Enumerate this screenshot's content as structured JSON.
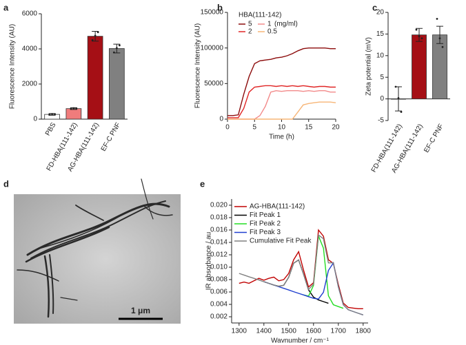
{
  "chart_data": [
    {
      "type": "bar",
      "panel_label": "a",
      "ylabel": "Fluorescence Intensity (AU)",
      "categories": [
        "PBS",
        "FD-HBA(111-142)",
        "AG-HBA(111-142)",
        "EF-C PNF"
      ],
      "values": [
        270,
        600,
        4720,
        4020
      ],
      "errors": [
        50,
        50,
        280,
        250
      ],
      "points": [
        [
          250,
          290,
          280
        ],
        [
          580,
          620,
          600
        ],
        [
          4500,
          4750,
          4950
        ],
        [
          3800,
          4050,
          4200
        ]
      ],
      "colors": [
        "#ffffff",
        "#f07c7c",
        "#a50f15",
        "#808080"
      ],
      "ylim": [
        0,
        6000
      ],
      "yticks": [
        0,
        2000,
        4000,
        6000
      ]
    },
    {
      "type": "line",
      "panel_label": "b",
      "ylabel": "Fluorescence Intensity (AU)",
      "xlabel": "Time (h)",
      "legend_title": "HBA(111-142)",
      "legend_note": "(mg/ml)",
      "x": [
        0,
        1,
        2,
        3,
        4,
        5,
        6,
        7,
        8,
        9,
        10,
        11,
        12,
        13,
        14,
        15,
        16,
        17,
        18,
        19,
        20
      ],
      "series": [
        {
          "name": "5",
          "color": "#8b0a0a",
          "values": [
            5000,
            5000,
            6000,
            35000,
            60000,
            78000,
            82000,
            83000,
            84000,
            86000,
            87000,
            89000,
            92000,
            96000,
            99000,
            100000,
            100000,
            100000,
            100000,
            99000,
            99000
          ]
        },
        {
          "name": "2",
          "color": "#e02424",
          "values": [
            2000,
            2000,
            2000,
            15000,
            38000,
            45000,
            46000,
            47000,
            47000,
            46000,
            47000,
            46000,
            47000,
            46000,
            47000,
            46000,
            45000,
            46000,
            46000,
            45000,
            45000
          ]
        },
        {
          "name": "1",
          "color": "#f28a8a",
          "values": [
            0,
            0,
            0,
            0,
            0,
            0,
            5000,
            18000,
            38000,
            40000,
            39000,
            40000,
            40000,
            40000,
            39000,
            40000,
            39000,
            40000,
            40000,
            38000,
            38000
          ]
        },
        {
          "name": "0.5",
          "color": "#f7b576",
          "values": [
            0,
            0,
            0,
            0,
            0,
            0,
            0,
            0,
            0,
            0,
            0,
            0,
            0,
            10000,
            20000,
            22000,
            23000,
            24000,
            24000,
            24000,
            23000
          ]
        }
      ],
      "xlim": [
        0,
        20
      ],
      "xticks": [
        0,
        5,
        10,
        15,
        20
      ],
      "ylim": [
        0,
        150000
      ],
      "yticks": [
        0,
        50000,
        100000,
        150000
      ]
    },
    {
      "type": "bar",
      "panel_label": "c",
      "ylabel": "Zeta potential (mV)",
      "categories": [
        "FD-HBA(111-142)",
        "AG-HBA(111-142)",
        "EF-C PNF"
      ],
      "values": [
        0,
        14.8,
        14.8
      ],
      "errors": [
        2.8,
        1.5,
        2.0
      ],
      "points": [
        [
          2.8,
          0.2,
          -3.0
        ],
        [
          16,
          14.5,
          14
        ],
        [
          18.5,
          14,
          12
        ]
      ],
      "colors": [
        "#ffffff",
        "#a50f15",
        "#808080"
      ],
      "ylim": [
        -5,
        20
      ],
      "yticks": [
        -5,
        0,
        5,
        10,
        15,
        20
      ]
    },
    {
      "type": "line",
      "panel_label": "e",
      "ylabel": "IR absorbance / au",
      "xlabel": "Wavnumber / cm⁻¹",
      "x": [
        1300,
        1320,
        1340,
        1360,
        1380,
        1400,
        1420,
        1440,
        1460,
        1480,
        1500,
        1520,
        1540,
        1560,
        1580,
        1600,
        1620,
        1640,
        1660,
        1680,
        1700,
        1720,
        1740,
        1760,
        1780,
        1800
      ],
      "series": [
        {
          "name": "AG-HBA(111-142)",
          "color": "#c00000",
          "values": [
            0.0074,
            0.0076,
            0.0074,
            0.0078,
            0.0082,
            0.0079,
            0.0082,
            0.0084,
            0.0078,
            0.008,
            0.009,
            0.0112,
            0.0125,
            0.0095,
            0.0068,
            0.0075,
            0.016,
            0.015,
            0.0112,
            0.0106,
            0.0072,
            0.0042,
            0.0035,
            0.0034,
            0.0033,
            0.0033
          ]
        },
        {
          "name": "Fit Peak 1",
          "color": "#000000",
          "values": [
            null,
            null,
            null,
            null,
            null,
            0.00766,
            0.00739,
            0.00712,
            0.00692,
            0.00708,
            0.00838,
            0.01064,
            0.01117,
            0.00886,
            0.00634,
            0.00517,
            0.00471,
            0.00444,
            0.00418,
            null,
            null,
            null,
            null,
            null,
            null,
            null
          ]
        },
        {
          "name": "Fit Peak 2",
          "color": "#22dd22",
          "values": [
            null,
            null,
            null,
            null,
            null,
            null,
            null,
            null,
            null,
            null,
            null,
            null,
            null,
            0.00552,
            0.00532,
            0.00707,
            0.01503,
            0.01308,
            0.0054,
            0.00394,
            0.00364,
            0.00337,
            null,
            null,
            null,
            null
          ]
        },
        {
          "name": "Fit Peak 3",
          "color": "#1f3fcf",
          "values": [
            null,
            null,
            null,
            null,
            null,
            0.00766,
            0.00739,
            0.00712,
            0.00686,
            0.00659,
            0.00632,
            0.00605,
            0.00578,
            0.00552,
            0.00525,
            0.00498,
            0.00487,
            0.00595,
            0.00947,
            0.01069,
            0.00685,
            0.00393,
            0.00313,
            0.00284,
            0.00257,
            0.0023
          ]
        },
        {
          "name": "Cumulative Fit Peak",
          "color": "#808080",
          "values": [
            0.009,
            0.00873,
            0.00846,
            0.0082,
            0.00793,
            0.00766,
            0.00739,
            0.00712,
            0.00692,
            0.00708,
            0.00838,
            0.01064,
            0.01117,
            0.00886,
            0.00641,
            0.00726,
            0.01519,
            0.01459,
            0.01069,
            0.01072,
            0.00685,
            0.00393,
            0.00313,
            0.00284,
            0.00257,
            0.0023
          ]
        }
      ],
      "xlim": [
        1270,
        1820
      ],
      "xticks": [
        1300,
        1400,
        1500,
        1600,
        1700,
        1800
      ],
      "ylim": [
        0.001,
        0.021
      ],
      "yticks": [
        0.002,
        0.004,
        0.006,
        0.008,
        {
          "value": 0.01,
          "label": "0.010"
        },
        0.012,
        0.014,
        0.016,
        0.018,
        {
          "value": 0.02,
          "label": "0.020"
        }
      ]
    }
  ],
  "image": {
    "panel_label": "d",
    "scale_bar": "1 μm"
  }
}
